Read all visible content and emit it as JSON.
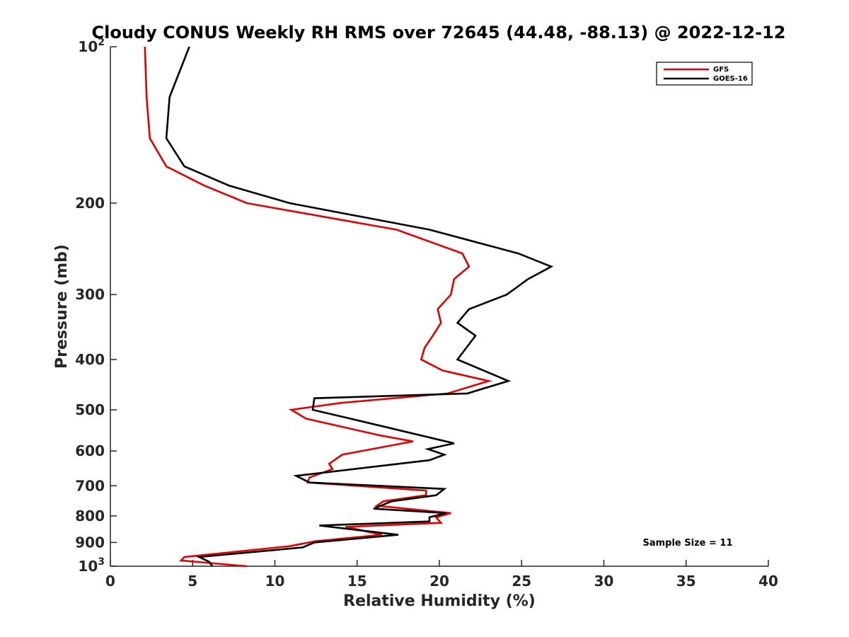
{
  "chart_data": {
    "type": "line",
    "title": "Cloudy CONUS Weekly RH RMS over 72645 (44.48, -88.13) @ 2022-12-12",
    "xlabel": "Relative Humidity (%)",
    "ylabel": "Pressure (mb)",
    "xlim": [
      0,
      40
    ],
    "ylim": [
      100,
      1000
    ],
    "yscale": "log",
    "y_reversed": true,
    "x_ticks": [
      "0",
      "5",
      "10",
      "15",
      "20",
      "25",
      "30",
      "35",
      "40"
    ],
    "y_ticks": [
      {
        "value": 100,
        "label": "10",
        "sup": "2"
      },
      {
        "value": 200,
        "label": "200",
        "sup": ""
      },
      {
        "value": 300,
        "label": "300",
        "sup": ""
      },
      {
        "value": 400,
        "label": "400",
        "sup": ""
      },
      {
        "value": 500,
        "label": "500",
        "sup": ""
      },
      {
        "value": 600,
        "label": "600",
        "sup": ""
      },
      {
        "value": 700,
        "label": "700",
        "sup": ""
      },
      {
        "value": 800,
        "label": "800",
        "sup": ""
      },
      {
        "value": 900,
        "label": "900",
        "sup": ""
      },
      {
        "value": 1000,
        "label": "10",
        "sup": "3"
      }
    ],
    "grid": false,
    "legend_position": "top-right",
    "annotation": "Sample Size = 11",
    "series": [
      {
        "name": "GFS",
        "color": "#e00000",
        "points": [
          [
            2.1,
            100
          ],
          [
            2.2,
            125
          ],
          [
            2.4,
            150
          ],
          [
            3.4,
            170
          ],
          [
            5.7,
            185
          ],
          [
            8.3,
            200
          ],
          [
            17.4,
            225
          ],
          [
            21.4,
            250
          ],
          [
            21.8,
            265
          ],
          [
            20.9,
            280
          ],
          [
            20.7,
            300
          ],
          [
            19.9,
            320
          ],
          [
            20.1,
            340
          ],
          [
            19.6,
            360
          ],
          [
            19.1,
            380
          ],
          [
            18.9,
            400
          ],
          [
            20.2,
            420
          ],
          [
            23.0,
            440
          ],
          [
            20.5,
            465
          ],
          [
            14.0,
            485
          ],
          [
            11.0,
            500
          ],
          [
            11.9,
            520
          ],
          [
            16.4,
            560
          ],
          [
            18.4,
            575
          ],
          [
            14.1,
            610
          ],
          [
            13.3,
            635
          ],
          [
            13.5,
            650
          ],
          [
            12.1,
            675
          ],
          [
            12.0,
            690
          ],
          [
            19.2,
            715
          ],
          [
            19.2,
            730
          ],
          [
            16.6,
            750
          ],
          [
            16.2,
            765
          ],
          [
            20.7,
            790
          ],
          [
            19.8,
            805
          ],
          [
            20.1,
            825
          ],
          [
            14.3,
            840
          ],
          [
            16.5,
            870
          ],
          [
            12.5,
            895
          ],
          [
            10.9,
            915
          ],
          [
            4.5,
            960
          ],
          [
            4.3,
            975
          ],
          [
            8.3,
            1000
          ]
        ]
      },
      {
        "name": "GOES-16",
        "color": "#000000",
        "points": [
          [
            4.8,
            100
          ],
          [
            3.6,
            125
          ],
          [
            3.4,
            150
          ],
          [
            4.5,
            170
          ],
          [
            7.2,
            185
          ],
          [
            10.9,
            200
          ],
          [
            19.4,
            225
          ],
          [
            24.8,
            250
          ],
          [
            26.8,
            265
          ],
          [
            25.4,
            280
          ],
          [
            24.1,
            300
          ],
          [
            21.8,
            320
          ],
          [
            21.1,
            340
          ],
          [
            22.2,
            360
          ],
          [
            21.1,
            400
          ],
          [
            24.2,
            440
          ],
          [
            21.7,
            465
          ],
          [
            12.4,
            475
          ],
          [
            12.3,
            500
          ],
          [
            14.6,
            520
          ],
          [
            20.9,
            580
          ],
          [
            19.3,
            595
          ],
          [
            20.3,
            610
          ],
          [
            19.4,
            625
          ],
          [
            11.3,
            670
          ],
          [
            12.1,
            690
          ],
          [
            20.3,
            710
          ],
          [
            19.8,
            730
          ],
          [
            17.1,
            750
          ],
          [
            16.0,
            775
          ],
          [
            20.4,
            790
          ],
          [
            19.4,
            805
          ],
          [
            19.4,
            820
          ],
          [
            12.7,
            835
          ],
          [
            17.5,
            870
          ],
          [
            12.4,
            900
          ],
          [
            11.7,
            920
          ],
          [
            5.4,
            960
          ],
          [
            6.0,
            980
          ],
          [
            6.2,
            1000
          ]
        ]
      }
    ]
  }
}
